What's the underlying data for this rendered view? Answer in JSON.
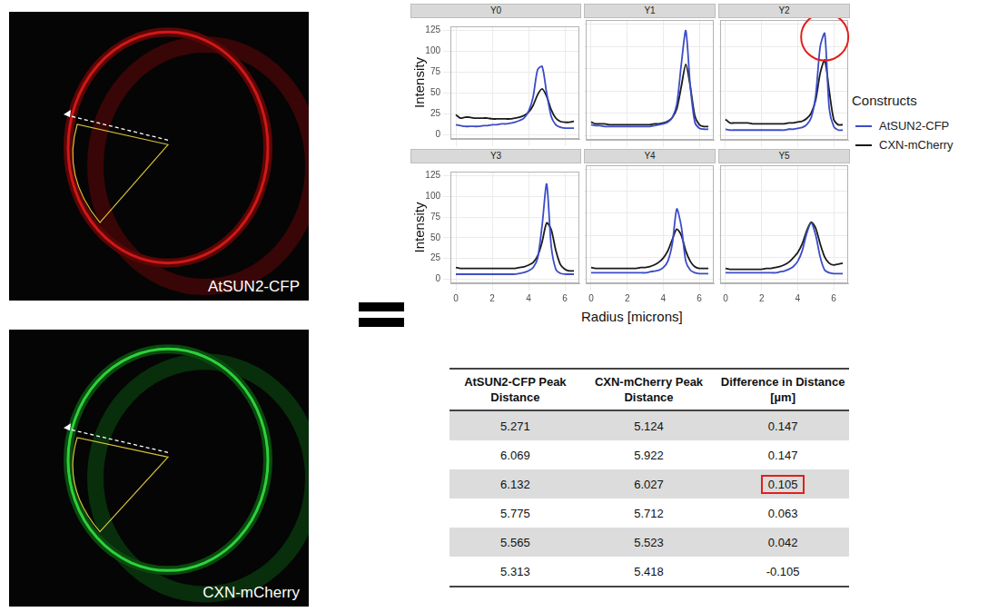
{
  "images": [
    {
      "label": "AtSUN2-CFP"
    },
    {
      "label": "CXN-mCherry"
    }
  ],
  "shared": {
    "legend_title": "Constructs",
    "legend": "right"
  },
  "chart_data": [
    {
      "type": "line",
      "title": "Y0",
      "y_label": "Intensity",
      "tick_labels": "y",
      "grid": true,
      "xlim": [
        -0.3,
        6.8
      ],
      "xticks": [
        0,
        2,
        4,
        6
      ],
      "ylim": [
        -5,
        130
      ],
      "yticks": [
        0,
        25,
        50,
        75,
        100,
        125
      ],
      "x": [
        0,
        0.25,
        0.5,
        0.75,
        1,
        1.25,
        1.5,
        1.75,
        2,
        2.25,
        2.5,
        2.75,
        3,
        3.25,
        3.5,
        3.75,
        4,
        4.25,
        4.5,
        4.75,
        5,
        5.25,
        5.5,
        5.75,
        6,
        6.25,
        6.5
      ],
      "series": [
        {
          "name": "AtSUN2-CFP",
          "color": "#3b4cc8",
          "values": [
            12,
            11,
            10,
            10,
            10,
            10,
            11,
            11,
            12,
            12,
            13,
            13,
            14,
            15,
            17,
            20,
            28,
            45,
            78,
            82,
            50,
            22,
            12,
            9,
            8,
            8,
            8
          ]
        },
        {
          "name": "CXN-mCherry",
          "color": "#1a1a1a",
          "values": [
            24,
            20,
            21,
            21,
            20,
            20,
            20,
            20,
            19,
            19,
            19,
            19,
            19,
            20,
            21,
            23,
            27,
            35,
            48,
            55,
            46,
            30,
            20,
            16,
            15,
            15,
            16
          ]
        }
      ]
    },
    {
      "type": "line",
      "title": "Y1",
      "tick_labels": false,
      "grid": true,
      "xlim": [
        -0.3,
        6.8
      ],
      "xticks": [
        0,
        2,
        4,
        6
      ],
      "ylim": [
        -5,
        130
      ],
      "yticks": [
        0,
        25,
        50,
        75,
        100,
        125
      ],
      "x": [
        0,
        0.25,
        0.5,
        0.75,
        1,
        1.25,
        1.5,
        1.75,
        2,
        2.25,
        2.5,
        2.75,
        3,
        3.25,
        3.5,
        3.75,
        4,
        4.25,
        4.5,
        4.75,
        5,
        5.25,
        5.5,
        5.75,
        6,
        6.25,
        6.5
      ],
      "series": [
        {
          "name": "AtSUN2-CFP",
          "color": "#3b4cc8",
          "values": [
            12,
            11,
            11,
            10,
            10,
            10,
            10,
            10,
            10,
            10,
            10,
            10,
            10,
            10,
            11,
            12,
            13,
            15,
            20,
            35,
            80,
            118,
            55,
            15,
            8,
            7,
            7
          ]
        },
        {
          "name": "CXN-mCherry",
          "color": "#1a1a1a",
          "values": [
            15,
            13,
            13,
            13,
            12,
            12,
            12,
            12,
            12,
            12,
            12,
            12,
            12,
            12,
            13,
            13,
            14,
            16,
            20,
            30,
            55,
            80,
            55,
            22,
            12,
            10,
            10
          ]
        }
      ]
    },
    {
      "type": "line",
      "title": "Y2",
      "tick_labels": false,
      "grid": true,
      "xlim": [
        -0.3,
        6.8
      ],
      "xticks": [
        0,
        2,
        4,
        6
      ],
      "ylim": [
        -5,
        130
      ],
      "yticks": [
        0,
        25,
        50,
        75,
        100,
        125
      ],
      "x": [
        0,
        0.25,
        0.5,
        0.75,
        1,
        1.25,
        1.5,
        1.75,
        2,
        2.25,
        2.5,
        2.75,
        3,
        3.25,
        3.5,
        3.75,
        4,
        4.25,
        4.5,
        4.75,
        5,
        5.25,
        5.5,
        5.75,
        6,
        6.25,
        6.5
      ],
      "series": [
        {
          "name": "AtSUN2-CFP",
          "color": "#3b4cc8",
          "values": [
            7,
            6,
            6,
            6,
            6,
            6,
            6,
            6,
            6,
            6,
            6,
            6,
            6,
            6,
            7,
            7,
            8,
            9,
            12,
            20,
            45,
            100,
            115,
            30,
            10,
            6,
            6
          ]
        },
        {
          "name": "CXN-mCherry",
          "color": "#1a1a1a",
          "values": [
            18,
            14,
            14,
            14,
            14,
            14,
            13,
            13,
            13,
            13,
            13,
            13,
            13,
            13,
            14,
            14,
            15,
            16,
            19,
            25,
            40,
            70,
            85,
            50,
            18,
            12,
            12
          ]
        }
      ]
    },
    {
      "type": "line",
      "title": "Y3",
      "y_label": "Intensity",
      "tick_labels": true,
      "grid": true,
      "xlim": [
        -0.3,
        6.8
      ],
      "xticks": [
        0,
        2,
        4,
        6
      ],
      "ylim": [
        -5,
        130
      ],
      "yticks": [
        0,
        25,
        50,
        75,
        100,
        125
      ],
      "x": [
        0,
        0.25,
        0.5,
        0.75,
        1,
        1.25,
        1.5,
        1.75,
        2,
        2.25,
        2.5,
        2.75,
        3,
        3.25,
        3.5,
        3.75,
        4,
        4.25,
        4.5,
        4.75,
        5,
        5.25,
        5.5,
        5.75,
        6,
        6.25,
        6.5
      ],
      "series": [
        {
          "name": "AtSUN2-CFP",
          "color": "#3b4cc8",
          "values": [
            6,
            6,
            6,
            6,
            6,
            6,
            6,
            6,
            6,
            6,
            6,
            6,
            6,
            6,
            7,
            8,
            10,
            14,
            25,
            65,
            115,
            40,
            12,
            7,
            6,
            6,
            6
          ]
        },
        {
          "name": "CXN-mCherry",
          "color": "#1a1a1a",
          "values": [
            14,
            13,
            13,
            13,
            13,
            13,
            13,
            13,
            13,
            13,
            13,
            13,
            13,
            13,
            14,
            15,
            17,
            20,
            28,
            45,
            68,
            60,
            35,
            18,
            12,
            10,
            10
          ]
        }
      ]
    },
    {
      "type": "line",
      "title": "Y4",
      "x_label": "Radius [microns]",
      "tick_labels": "x",
      "grid": true,
      "xlim": [
        -0.3,
        6.8
      ],
      "xticks": [
        0,
        2,
        4,
        6
      ],
      "ylim": [
        -5,
        130
      ],
      "yticks": [
        0,
        25,
        50,
        75,
        100,
        125
      ],
      "x": [
        0,
        0.25,
        0.5,
        0.75,
        1,
        1.25,
        1.5,
        1.75,
        2,
        2.25,
        2.5,
        2.75,
        3,
        3.25,
        3.5,
        3.75,
        4,
        4.25,
        4.5,
        4.75,
        5,
        5.25,
        5.5,
        5.75,
        6,
        6.25,
        6.5
      ],
      "series": [
        {
          "name": "AtSUN2-CFP",
          "color": "#3b4cc8",
          "values": [
            7,
            7,
            7,
            7,
            7,
            7,
            7,
            7,
            7,
            7,
            7,
            7,
            7,
            8,
            9,
            10,
            13,
            20,
            40,
            80,
            60,
            20,
            10,
            7,
            6,
            6,
            6
          ]
        },
        {
          "name": "CXN-mCherry",
          "color": "#1a1a1a",
          "values": [
            13,
            12,
            12,
            12,
            12,
            12,
            12,
            12,
            12,
            12,
            12,
            13,
            13,
            14,
            16,
            19,
            24,
            32,
            45,
            57,
            50,
            32,
            20,
            14,
            12,
            12,
            12
          ]
        }
      ]
    },
    {
      "type": "line",
      "title": "Y5",
      "tick_labels": "x",
      "grid": true,
      "xlim": [
        -0.3,
        6.8
      ],
      "xticks": [
        0,
        2,
        4,
        6
      ],
      "ylim": [
        -5,
        130
      ],
      "yticks": [
        0,
        25,
        50,
        75,
        100,
        125
      ],
      "x": [
        0,
        0.25,
        0.5,
        0.75,
        1,
        1.25,
        1.5,
        1.75,
        2,
        2.25,
        2.5,
        2.75,
        3,
        3.25,
        3.5,
        3.75,
        4,
        4.25,
        4.5,
        4.75,
        5,
        5.25,
        5.5,
        5.75,
        6,
        6.25,
        6.5
      ],
      "series": [
        {
          "name": "AtSUN2-CFP",
          "color": "#3b4cc8",
          "values": [
            7,
            7,
            7,
            7,
            7,
            7,
            7,
            7,
            7,
            7,
            7,
            7,
            8,
            9,
            11,
            14,
            20,
            32,
            52,
            64,
            50,
            25,
            10,
            7,
            6,
            6,
            6
          ]
        },
        {
          "name": "CXN-mCherry",
          "color": "#1a1a1a",
          "values": [
            12,
            11,
            11,
            11,
            11,
            11,
            11,
            11,
            11,
            12,
            12,
            13,
            14,
            16,
            19,
            24,
            30,
            40,
            55,
            65,
            58,
            40,
            25,
            18,
            16,
            17,
            18
          ]
        }
      ]
    }
  ],
  "table": {
    "columns": [
      "AtSUN2-CFP Peak Distance",
      "CXN-mCherry Peak Distance",
      "Difference in Distance [µm]"
    ],
    "rows": [
      [
        "5.271",
        "5.124",
        "0.147"
      ],
      [
        "6.069",
        "5.922",
        "0.147"
      ],
      [
        "6.132",
        "6.027",
        "0.105"
      ],
      [
        "5.775",
        "5.712",
        "0.063"
      ],
      [
        "5.565",
        "5.523",
        "0.042"
      ],
      [
        "5.313",
        "5.418",
        "-0.105"
      ]
    ]
  }
}
